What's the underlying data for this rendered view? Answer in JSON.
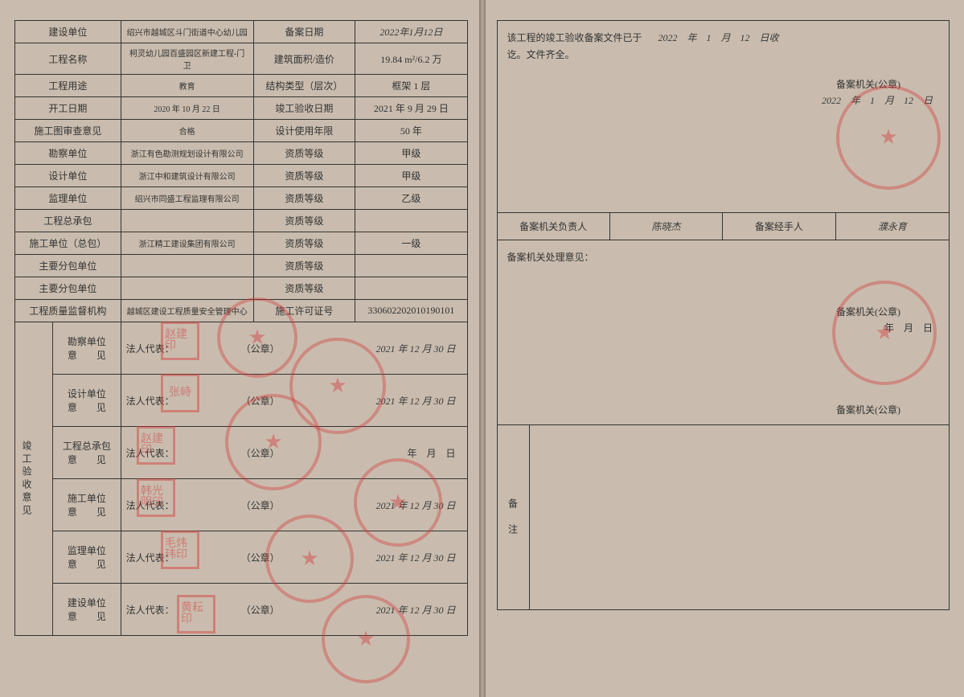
{
  "colors": {
    "paper": "#c9bcae",
    "border": "#333333",
    "stamp_red": "#d33636",
    "text": "#333333"
  },
  "left": {
    "rows": [
      {
        "k": "建设单位",
        "v": "绍兴市越城区斗门街道中心幼儿园",
        "k2": "备案日期",
        "v2": "2022年1月12日"
      },
      {
        "k": "工程名称",
        "v": "柯灵幼儿园百盛园区新建工程-门卫",
        "k2": "建筑面积/造价",
        "v2": "19.84 m²/6.2 万"
      },
      {
        "k": "工程用途",
        "v": "教育",
        "k2": "结构类型（层次）",
        "v2": "框架 1 层"
      },
      {
        "k": "开工日期",
        "v": "2020 年 10 月 22 日",
        "k2": "竣工验收日期",
        "v2": "2021 年 9 月 29 日"
      },
      {
        "k": "施工图审查意见",
        "v": "合格",
        "k2": "设计使用年限",
        "v2": "50 年"
      },
      {
        "k": "勘察单位",
        "v": "浙江有色勘测规划设计有限公司",
        "k2": "资质等级",
        "v2": "甲级"
      },
      {
        "k": "设计单位",
        "v": "浙江中和建筑设计有限公司",
        "k2": "资质等级",
        "v2": "甲级"
      },
      {
        "k": "监理单位",
        "v": "绍兴市同盛工程监理有限公司",
        "k2": "资质等级",
        "v2": "乙级"
      },
      {
        "k": "工程总承包",
        "v": "",
        "k2": "资质等级",
        "v2": ""
      },
      {
        "k": "施工单位（总包）",
        "v": "浙江精工建设集团有限公司",
        "k2": "资质等级",
        "v2": "一级"
      },
      {
        "k": "主要分包单位",
        "v": "",
        "k2": "资质等级",
        "v2": ""
      },
      {
        "k": "主要分包单位",
        "v": "",
        "k2": "资质等级",
        "v2": ""
      },
      {
        "k": "工程质量监督机构",
        "v": "越城区建设工程质量安全管理中心",
        "k2": "施工许可证号",
        "v2": "330602202010190101"
      }
    ],
    "opinion_header": "竣工验收意见",
    "opinions": [
      {
        "label": "勘察单位\n意　　见",
        "rep": "法人代表：",
        "gz": "（公章）",
        "date": "2021 年 12 月 30 日",
        "seal": "赵建印"
      },
      {
        "label": "设计单位\n意　　见",
        "rep": "法人代表：",
        "gz": "（公章）",
        "date": "2021 年 12 月 30 日",
        "seal": "张峙"
      },
      {
        "label": "工程总承包\n意　　见",
        "rep": "法人代表：",
        "gz": "（公章）",
        "date": "年　月　日",
        "seal": "赵建印"
      },
      {
        "label": "施工单位\n意　　见",
        "rep": "法人代表：",
        "gz": "（公章）",
        "date": "2021 年 12 月 30 日",
        "seal": "韩光明印"
      },
      {
        "label": "监理单位\n意　　见",
        "rep": "法人代表：",
        "gz": "（公章）",
        "date": "2021 年 12 月 30 日",
        "seal": "毛炜玮印"
      },
      {
        "label": "建设单位\n意　　见",
        "rep": "法人代表：",
        "gz": "（公章）",
        "date": "2021 年 12 月 30 日",
        "seal": "黄耘印"
      }
    ]
  },
  "right": {
    "top_text_1": "该工程的竣工验收备案文件已于",
    "top_date_received": "2022　年　1　月　12　日收",
    "top_text_2": "讫。文件齐全。",
    "seal_label": "备案机关(公章)",
    "seal_date": "2022　年　1　月　12　日",
    "row2": {
      "c1": "备案机关负责人",
      "c2": "陈晓杰",
      "c3": "备案经手人",
      "c4": "濮永育"
    },
    "mid_label": "备案机关处理意见：",
    "mid_seal_label": "备案机关(公章)",
    "mid_date": "年　月　日",
    "bottom_seal_label": "备案机关(公章)",
    "remark_label": "备　注"
  }
}
